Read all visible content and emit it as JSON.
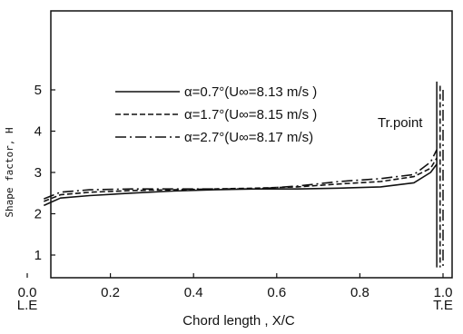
{
  "chart_data": {
    "type": "line",
    "xlabel": "Chord  length , X/C",
    "ylabel": "Shape factor, H",
    "xlim": [
      0,
      1
    ],
    "ylim": [
      0,
      6.5
    ],
    "x_ticks": [
      {
        "value": 0.0,
        "label": "0.0"
      },
      {
        "value": 0.2,
        "label": "0.2"
      },
      {
        "value": 0.4,
        "label": "0.4"
      },
      {
        "value": 0.6,
        "label": "0.6"
      },
      {
        "value": 0.8,
        "label": "0.8"
      },
      {
        "value": 1.0,
        "label": "1.0"
      }
    ],
    "x_sublabels": [
      {
        "value": 0.0,
        "label": "L.E"
      },
      {
        "value": 1.0,
        "label": "T.E"
      }
    ],
    "y_ticks": [
      {
        "value": 1,
        "label": "1"
      },
      {
        "value": 2,
        "label": "2"
      },
      {
        "value": 3,
        "label": "3"
      },
      {
        "value": 4,
        "label": "4"
      },
      {
        "value": 5,
        "label": "5"
      }
    ],
    "legend_placement": "upper-left",
    "series": [
      {
        "name": "α=0.7°(U∞=8.13 m/s )",
        "dash": "solid",
        "x": [
          0.04,
          0.08,
          0.15,
          0.25,
          0.35,
          0.45,
          0.55,
          0.65,
          0.75,
          0.85,
          0.93,
          0.97,
          0.985
        ],
        "y": [
          2.2,
          2.38,
          2.44,
          2.5,
          2.55,
          2.58,
          2.6,
          2.6,
          2.62,
          2.65,
          2.75,
          3.0,
          3.2
        ]
      },
      {
        "name": "α=1.7°(U∞=8.15 m/s )",
        "dash": "dashed",
        "x": [
          0.04,
          0.08,
          0.15,
          0.25,
          0.35,
          0.45,
          0.55,
          0.65,
          0.75,
          0.85,
          0.93,
          0.97,
          0.985
        ],
        "y": [
          2.3,
          2.46,
          2.52,
          2.56,
          2.58,
          2.6,
          2.62,
          2.65,
          2.72,
          2.78,
          2.9,
          3.1,
          3.35
        ]
      },
      {
        "name": "α=2.7°(U∞=8.17 m/s)",
        "dash": "dash-dot",
        "x": [
          0.04,
          0.08,
          0.15,
          0.25,
          0.35,
          0.45,
          0.55,
          0.65,
          0.75,
          0.85,
          0.93,
          0.97,
          0.985
        ],
        "y": [
          2.36,
          2.52,
          2.58,
          2.6,
          2.6,
          2.6,
          2.6,
          2.67,
          2.78,
          2.85,
          2.95,
          3.25,
          3.55
        ]
      }
    ],
    "transition_markers": [
      {
        "x": 0.985,
        "y_top": 5.2,
        "y_bottom": 0.7,
        "dash": "solid"
      },
      {
        "x": 0.993,
        "y_top": 5.1,
        "y_bottom": 0.7,
        "dash": "dashed"
      },
      {
        "x": 1.0,
        "y_top": 5.0,
        "y_bottom": 0.7,
        "dash": "dash-dot"
      }
    ],
    "annotation": {
      "text": "Tr.point"
    }
  }
}
